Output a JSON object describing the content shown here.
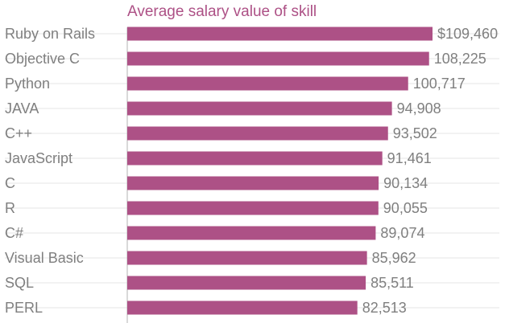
{
  "colors": {
    "bar": "#ad5186",
    "title": "#ad5186",
    "label": "#7f7f7f",
    "grid": "#e6e6e6",
    "axis": "#b3b3b3"
  },
  "chart_data": {
    "type": "bar",
    "orientation": "horizontal",
    "title": "Average salary value of skill",
    "xlabel": "",
    "ylabel": "",
    "grid": true,
    "categories": [
      "Ruby on Rails",
      "Objective C",
      "Python",
      "JAVA",
      "C++",
      "JavaScript",
      "C",
      "R",
      "C#",
      "Visual Basic",
      "SQL",
      "PERL"
    ],
    "values": [
      109460,
      108225,
      100717,
      94908,
      93502,
      91461,
      90134,
      90055,
      89074,
      85962,
      85511,
      82513
    ],
    "value_labels": [
      "$109,460",
      "108,225",
      "100,717",
      "94,908",
      "93,502",
      "91,461",
      "90,134",
      "90,055",
      "89,074",
      "85,962",
      "85,511",
      "82,513"
    ],
    "xlim": [
      0,
      109460
    ]
  }
}
